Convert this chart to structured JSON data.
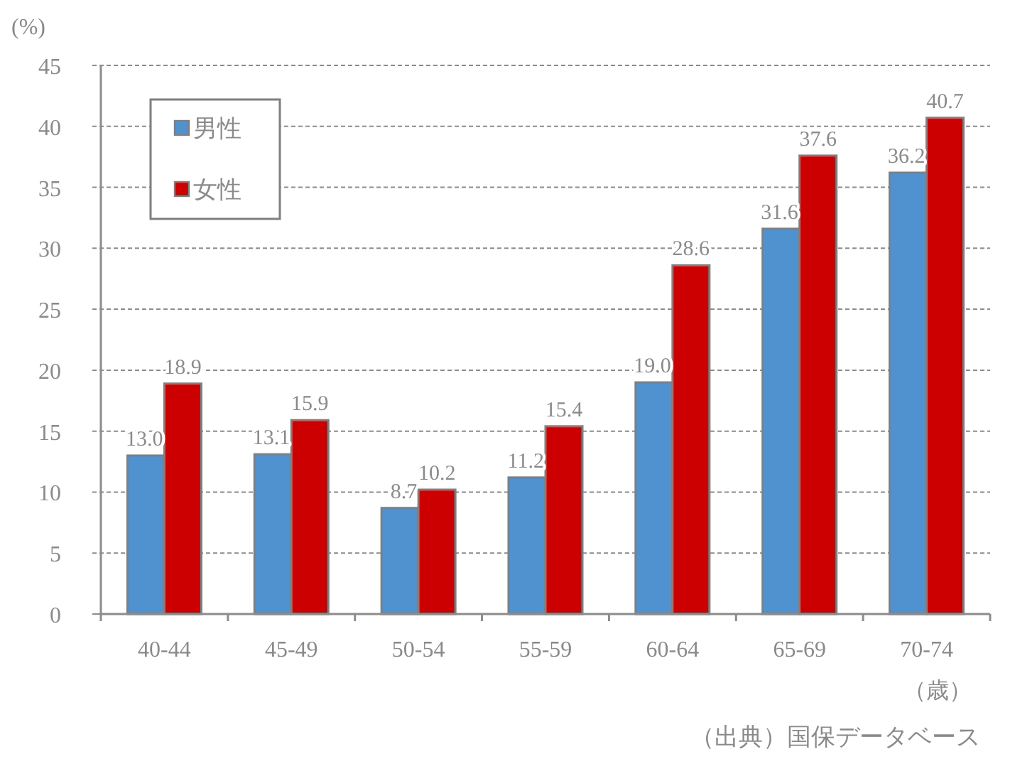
{
  "chart_data": {
    "type": "bar",
    "ylabel": "(%)",
    "xlabel": "（歳）",
    "categories": [
      "40-44",
      "45-49",
      "50-54",
      "55-59",
      "60-64",
      "65-69",
      "70-74"
    ],
    "series": [
      {
        "name": "男性",
        "color": "#5092d0",
        "values": [
          13.0,
          13.1,
          8.7,
          11.2,
          19.0,
          31.6,
          36.2
        ],
        "value_labels": [
          "13.0",
          "13.1",
          "8.7",
          "11.2",
          "19.0",
          "31.6",
          "36.2"
        ]
      },
      {
        "name": "女性",
        "color": "#cc0000",
        "values": [
          18.9,
          15.9,
          10.2,
          15.4,
          28.6,
          37.6,
          40.7
        ],
        "value_labels": [
          "18.9",
          "15.9",
          "10.2",
          "15.4",
          "28.6",
          "37.6",
          "40.7"
        ]
      }
    ],
    "ylim": [
      0,
      45
    ],
    "yticks": [
      0,
      5,
      10,
      15,
      20,
      25,
      30,
      35,
      40,
      45
    ],
    "grid": "y",
    "legend": "top left",
    "annotations": [
      "（出典）国保データベース"
    ]
  }
}
